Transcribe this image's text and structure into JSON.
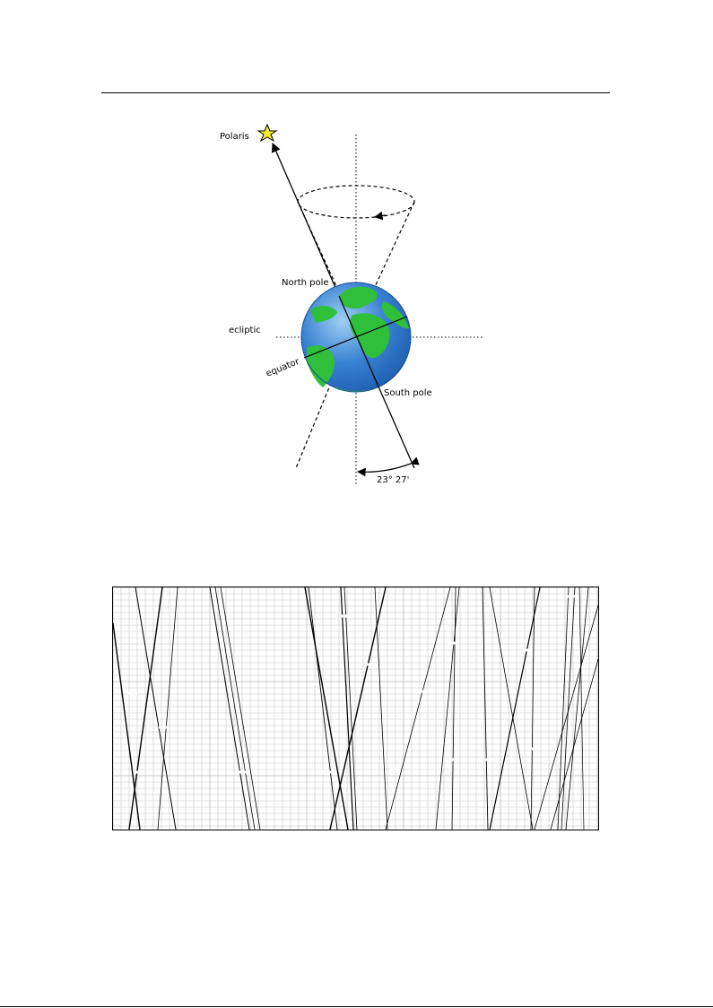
{
  "diagram": {
    "labels": {
      "polaris": "Polaris",
      "north_pole": "North pole",
      "south_pole": "South pole",
      "ecliptic": "ecliptic",
      "equator": "equator",
      "tilt": "23° 27'"
    },
    "colors": {
      "ocean": "#2f73c9",
      "ocean_light": "#8fc3ee",
      "land": "#2fbf3a",
      "star": "#f4ec2a"
    }
  },
  "panel": {
    "grid_color": "#c8c8c8",
    "line_color": "#000000"
  }
}
